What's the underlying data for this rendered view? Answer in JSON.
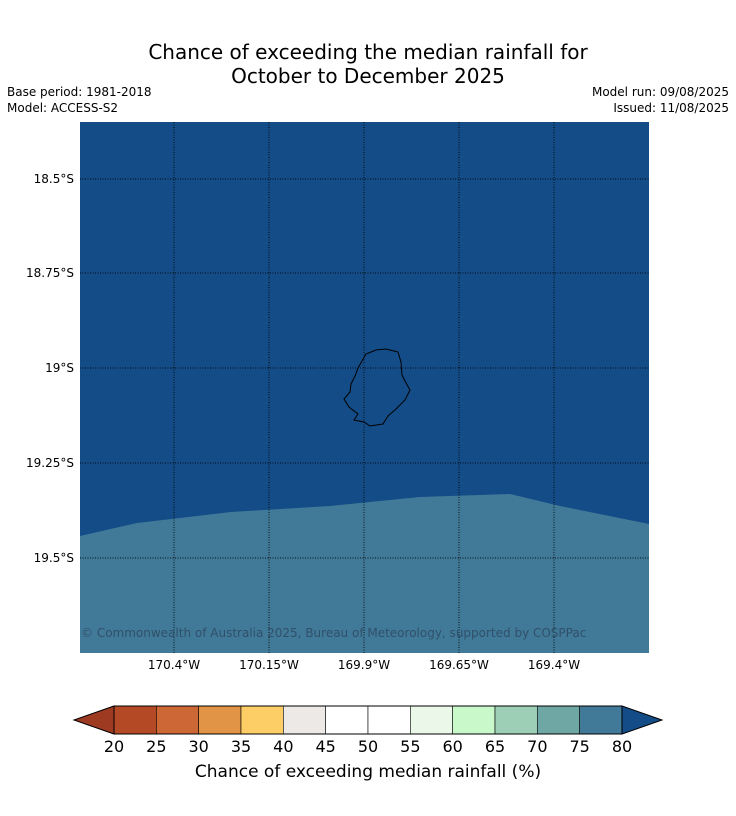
{
  "title": {
    "line1": "Chance of exceeding the median rainfall for",
    "line2": "October to December 2025"
  },
  "meta": {
    "base_period": "Base period: 1981-2018",
    "model": "Model: ACCESS-S2",
    "model_run": "Model run: 09/08/2025",
    "issued": "Issued: 11/08/2025"
  },
  "map": {
    "lat_ticks": [
      "18.5°S",
      "18.75°S",
      "19°S",
      "19.25°S",
      "19.5°S"
    ],
    "lon_ticks": [
      "170.4°W",
      "170.15°W",
      "169.9°W",
      "169.65°W",
      "169.4°W"
    ],
    "copyright": "© Commonwealth of Australia 2025, Bureau of Meteorology, supported by COSPPac",
    "regions": [
      {
        "category": "80+",
        "color": "#134c86",
        "location": "northern and central area including island"
      },
      {
        "category": "75-80",
        "color": "#417a98",
        "location": "southern strip"
      }
    ]
  },
  "colorbar": {
    "labels": [
      "20",
      "25",
      "30",
      "35",
      "40",
      "45",
      "50",
      "55",
      "60",
      "65",
      "70",
      "75",
      "80"
    ],
    "colors": [
      "#9e3a22",
      "#b34a25",
      "#cd6735",
      "#e29446",
      "#fdcd66",
      "#ede9e6",
      "#ffffff",
      "#ffffff",
      "#ebf7e9",
      "#c9f9cb",
      "#9ccfb6",
      "#6fa7a5",
      "#417a98",
      "#134c86"
    ],
    "title": "Chance of exceeding median rainfall (%)"
  }
}
